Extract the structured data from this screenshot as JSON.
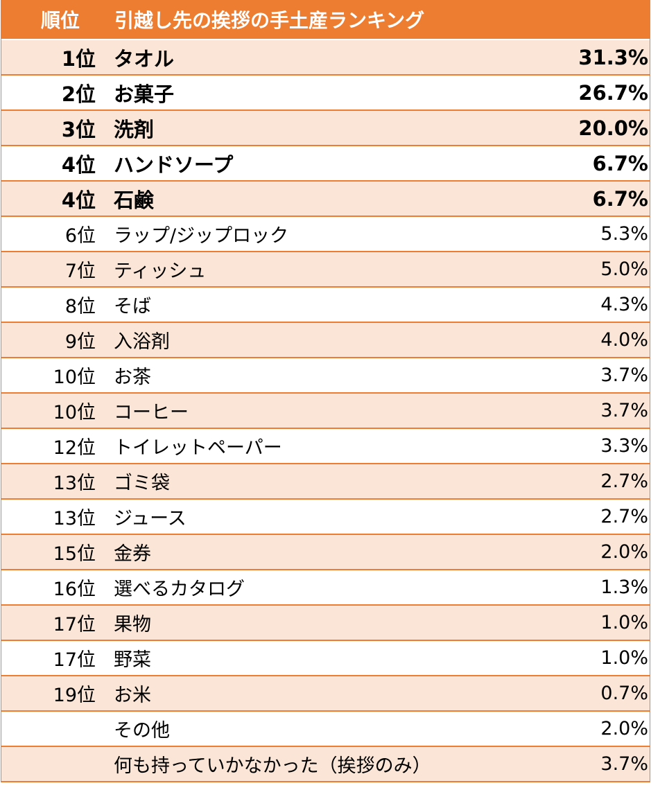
{
  "header": {
    "rank_label": "順位",
    "title": "引越し先の挨拶の手土産ランキング"
  },
  "rows": [
    {
      "rank": "1位",
      "item": "タオル",
      "pct": "31.3%"
    },
    {
      "rank": "2位",
      "item": "お菓子",
      "pct": "26.7%"
    },
    {
      "rank": "3位",
      "item": "洗剤",
      "pct": "20.0%"
    },
    {
      "rank": "4位",
      "item": "ハンドソープ",
      "pct": "6.7%"
    },
    {
      "rank": "4位",
      "item": "石鹸",
      "pct": "6.7%"
    },
    {
      "rank": "6位",
      "item": "ラップ/ジップロック",
      "pct": "5.3%"
    },
    {
      "rank": "7位",
      "item": "ティッシュ",
      "pct": "5.0%"
    },
    {
      "rank": "8位",
      "item": "そば",
      "pct": "4.3%"
    },
    {
      "rank": "9位",
      "item": "入浴剤",
      "pct": "4.0%"
    },
    {
      "rank": "10位",
      "item": "お茶",
      "pct": "3.7%"
    },
    {
      "rank": "10位",
      "item": "コーヒー",
      "pct": "3.7%"
    },
    {
      "rank": "12位",
      "item": "トイレットペーパー",
      "pct": "3.3%"
    },
    {
      "rank": "13位",
      "item": "ゴミ袋",
      "pct": "2.7%"
    },
    {
      "rank": "13位",
      "item": "ジュース",
      "pct": "2.7%"
    },
    {
      "rank": "15位",
      "item": "金券",
      "pct": "2.0%"
    },
    {
      "rank": "16位",
      "item": "選べるカタログ",
      "pct": "1.3%"
    },
    {
      "rank": "17位",
      "item": "果物",
      "pct": "1.0%"
    },
    {
      "rank": "17位",
      "item": "野菜",
      "pct": "1.0%"
    },
    {
      "rank": "19位",
      "item": "お米",
      "pct": "0.7%"
    },
    {
      "rank": "",
      "item": "その他",
      "pct": "2.0%"
    },
    {
      "rank": "",
      "item": "何も持っていかなかった（挨拶のみ）",
      "pct": "3.7%"
    }
  ],
  "colors": {
    "accent": "#ED7D31",
    "shade": "#FBE5D6"
  }
}
